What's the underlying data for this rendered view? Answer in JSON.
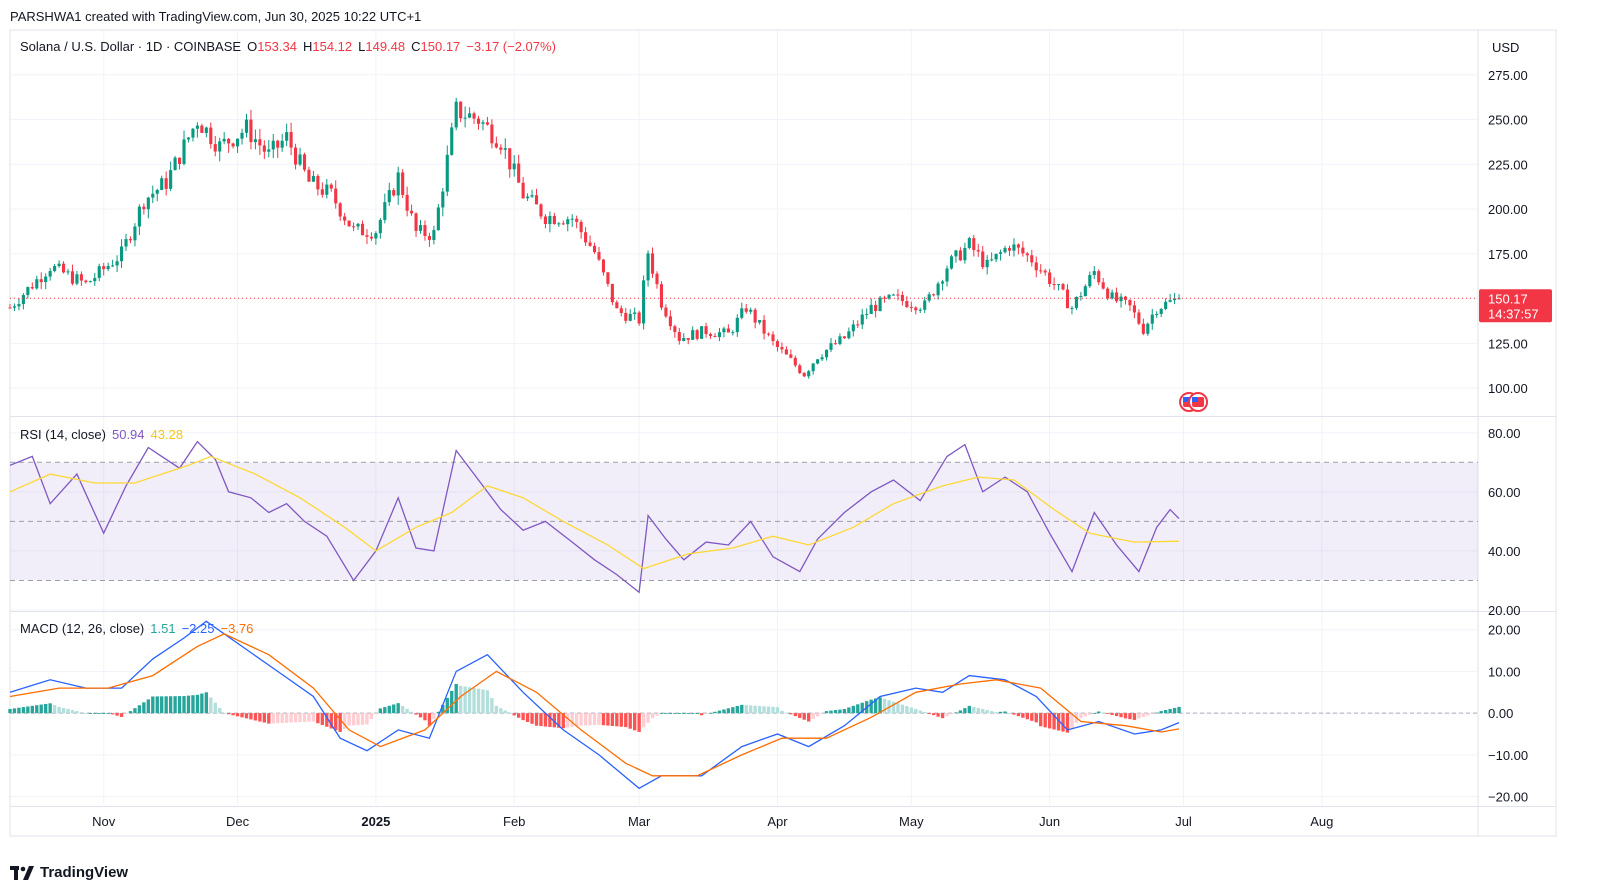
{
  "header": {
    "credit": "PARSHWA1 created with TradingView.com, Jun 30, 2025 10:22 UTC+1"
  },
  "price_legend": {
    "symbol": "Solana / U.S. Dollar · 1D · COINBASE",
    "o_label": "O",
    "o": "153.34",
    "h_label": "H",
    "h": "154.12",
    "l_label": "L",
    "l": "149.48",
    "c_label": "C",
    "c": "150.17",
    "change": "−3.17 (−2.07%)"
  },
  "currency": "USD",
  "last_price": {
    "value": "150.17",
    "countdown": "14:37:57"
  },
  "rsi_legend": {
    "label": "RSI (14, close)",
    "rsi": "50.94",
    "ma": "43.28"
  },
  "macd_legend": {
    "label": "MACD (12, 26, close)",
    "hist": "1.51",
    "macd": "−2.25",
    "signal": "−3.76"
  },
  "brand": "TradingView",
  "colors": {
    "up": "#089981",
    "down": "#f23645",
    "rsi": "#7e57c2",
    "rsi_ma": "#fdd835",
    "macd": "#2962ff",
    "signal": "#ff6d00",
    "hist_up": "#26a69a",
    "hist_down": "#ff5252"
  },
  "chart_data": [
    {
      "type": "candlestick",
      "ylim": [
        85,
        300
      ],
      "yticks": [
        100,
        125,
        150,
        175,
        200,
        225,
        250,
        275
      ],
      "ytick_labels": [
        "100.00",
        "125.00",
        "150.00",
        "175.00",
        "200.00",
        "225.00",
        "250.00",
        "275.00"
      ],
      "xticks": [
        "2024-11-01",
        "2024-12-01",
        "2025-01-01",
        "2025-02-01",
        "2025-03-01",
        "2025-04-01",
        "2025-05-01",
        "2025-06-01",
        "2025-07-01",
        "2025-08-01"
      ],
      "xtick_labels": [
        "Nov",
        "Dec",
        "2025",
        "Feb",
        "Mar",
        "Apr",
        "May",
        "Jun",
        "Jul",
        "Aug"
      ],
      "xlim": [
        "2024-10-11",
        "2025-09-05"
      ],
      "last_value": 150.17,
      "close_anchors": [
        [
          "2024-10-11",
          145
        ],
        [
          "2024-10-20",
          168
        ],
        [
          "2024-10-28",
          158
        ],
        [
          "2024-11-05",
          175
        ],
        [
          "2024-11-10",
          205
        ],
        [
          "2024-11-15",
          215
        ],
        [
          "2024-11-22",
          250
        ],
        [
          "2024-11-27",
          235
        ],
        [
          "2024-12-03",
          245
        ],
        [
          "2024-12-08",
          230
        ],
        [
          "2024-12-12",
          240
        ],
        [
          "2024-12-17",
          215
        ],
        [
          "2024-12-22",
          208
        ],
        [
          "2024-12-27",
          188
        ],
        [
          "2025-01-01",
          188
        ],
        [
          "2025-01-06",
          218
        ],
        [
          "2025-01-10",
          187
        ],
        [
          "2025-01-14",
          186
        ],
        [
          "2025-01-19",
          255
        ],
        [
          "2025-01-24",
          250
        ],
        [
          "2025-01-29",
          238
        ],
        [
          "2025-02-03",
          208
        ],
        [
          "2025-02-08",
          196
        ],
        [
          "2025-02-14",
          195
        ],
        [
          "2025-02-19",
          176
        ],
        [
          "2025-02-24",
          143
        ],
        [
          "2025-03-01",
          138
        ],
        [
          "2025-03-03",
          176
        ],
        [
          "2025-03-06",
          148
        ],
        [
          "2025-03-10",
          128
        ],
        [
          "2025-03-16",
          132
        ],
        [
          "2025-03-21",
          130
        ],
        [
          "2025-03-25",
          145
        ],
        [
          "2025-03-31",
          125
        ],
        [
          "2025-04-07",
          108
        ],
        [
          "2025-04-10",
          118
        ],
        [
          "2025-04-16",
          128
        ],
        [
          "2025-04-22",
          145
        ],
        [
          "2025-04-27",
          150
        ],
        [
          "2025-05-04",
          146
        ],
        [
          "2025-05-09",
          168
        ],
        [
          "2025-05-14",
          180
        ],
        [
          "2025-05-18",
          168
        ],
        [
          "2025-05-23",
          180
        ],
        [
          "2025-05-28",
          172
        ],
        [
          "2025-06-02",
          158
        ],
        [
          "2025-06-06",
          145
        ],
        [
          "2025-06-11",
          165
        ],
        [
          "2025-06-15",
          150
        ],
        [
          "2025-06-19",
          145
        ],
        [
          "2025-06-22",
          133
        ],
        [
          "2025-06-25",
          145
        ],
        [
          "2025-06-30",
          150.17
        ]
      ]
    },
    {
      "type": "line",
      "title": "RSI (14, close)",
      "ylim": [
        20,
        85
      ],
      "yticks": [
        20,
        40,
        60,
        80
      ],
      "ytick_labels": [
        "20.00",
        "40.00",
        "60.00",
        "80.00"
      ],
      "bands": [
        30,
        50,
        70
      ],
      "series": [
        {
          "name": "RSI",
          "points": [
            [
              "2024-10-11",
              69
            ],
            [
              "2024-10-16",
              72
            ],
            [
              "2024-10-20",
              56
            ],
            [
              "2024-10-26",
              66
            ],
            [
              "2024-11-01",
              46
            ],
            [
              "2024-11-06",
              62
            ],
            [
              "2024-11-11",
              75
            ],
            [
              "2024-11-14",
              72
            ],
            [
              "2024-11-18",
              68
            ],
            [
              "2024-11-22",
              77
            ],
            [
              "2024-11-26",
              71
            ],
            [
              "2024-11-29",
              60
            ],
            [
              "2024-12-04",
              58
            ],
            [
              "2024-12-08",
              53
            ],
            [
              "2024-12-12",
              56
            ],
            [
              "2024-12-16",
              50
            ],
            [
              "2024-12-21",
              45
            ],
            [
              "2024-12-27",
              30
            ],
            [
              "2025-01-01",
              40
            ],
            [
              "2025-01-06",
              58
            ],
            [
              "2025-01-10",
              41
            ],
            [
              "2025-01-14",
              40
            ],
            [
              "2025-01-19",
              74
            ],
            [
              "2025-01-24",
              64
            ],
            [
              "2025-01-29",
              54
            ],
            [
              "2025-02-03",
              47
            ],
            [
              "2025-02-08",
              50
            ],
            [
              "2025-02-14",
              43
            ],
            [
              "2025-02-19",
              37
            ],
            [
              "2025-02-24",
              32
            ],
            [
              "2025-03-01",
              26
            ],
            [
              "2025-03-03",
              52
            ],
            [
              "2025-03-07",
              44
            ],
            [
              "2025-03-11",
              37
            ],
            [
              "2025-03-16",
              43
            ],
            [
              "2025-03-21",
              42
            ],
            [
              "2025-03-26",
              50
            ],
            [
              "2025-03-31",
              38
            ],
            [
              "2025-04-06",
              33
            ],
            [
              "2025-04-10",
              44
            ],
            [
              "2025-04-16",
              53
            ],
            [
              "2025-04-22",
              60
            ],
            [
              "2025-04-27",
              64
            ],
            [
              "2025-05-03",
              57
            ],
            [
              "2025-05-09",
              72
            ],
            [
              "2025-05-13",
              76
            ],
            [
              "2025-05-17",
              60
            ],
            [
              "2025-05-22",
              65
            ],
            [
              "2025-05-27",
              60
            ],
            [
              "2025-06-01",
              46
            ],
            [
              "2025-06-06",
              33
            ],
            [
              "2025-06-11",
              53
            ],
            [
              "2025-06-16",
              42
            ],
            [
              "2025-06-21",
              33
            ],
            [
              "2025-06-25",
              48
            ],
            [
              "2025-06-28",
              54
            ],
            [
              "2025-06-30",
              50.94
            ]
          ]
        },
        {
          "name": "RSI-based MA",
          "points": [
            [
              "2024-10-11",
              60
            ],
            [
              "2024-10-20",
              66
            ],
            [
              "2024-10-30",
              63
            ],
            [
              "2024-11-08",
              63
            ],
            [
              "2024-11-20",
              69
            ],
            [
              "2024-11-25",
              72
            ],
            [
              "2024-12-05",
              66
            ],
            [
              "2024-12-15",
              58
            ],
            [
              "2024-12-25",
              48
            ],
            [
              "2025-01-01",
              40
            ],
            [
              "2025-01-10",
              48
            ],
            [
              "2025-01-18",
              53
            ],
            [
              "2025-01-26",
              62
            ],
            [
              "2025-02-03",
              58
            ],
            [
              "2025-02-12",
              50
            ],
            [
              "2025-02-22",
              42
            ],
            [
              "2025-03-02",
              34
            ],
            [
              "2025-03-12",
              39
            ],
            [
              "2025-03-22",
              41
            ],
            [
              "2025-03-31",
              45
            ],
            [
              "2025-04-08",
              42
            ],
            [
              "2025-04-18",
              48
            ],
            [
              "2025-04-27",
              56
            ],
            [
              "2025-05-08",
              62
            ],
            [
              "2025-05-16",
              65
            ],
            [
              "2025-05-24",
              64
            ],
            [
              "2025-06-02",
              54
            ],
            [
              "2025-06-10",
              46
            ],
            [
              "2025-06-20",
              43
            ],
            [
              "2025-06-30",
              43.28
            ]
          ]
        }
      ]
    },
    {
      "type": "bar+line",
      "title": "MACD (12, 26, close)",
      "ylim": [
        -22,
        24
      ],
      "yticks": [
        -20,
        -10,
        0,
        10,
        20
      ],
      "ytick_labels": [
        "−20.00",
        "−10.00",
        "0.00",
        "10.00",
        "20.00"
      ],
      "series": [
        {
          "name": "MACD",
          "points": [
            [
              "2024-10-11",
              5
            ],
            [
              "2024-10-20",
              8
            ],
            [
              "2024-10-28",
              6
            ],
            [
              "2024-11-05",
              6
            ],
            [
              "2024-11-12",
              13
            ],
            [
              "2024-11-19",
              18
            ],
            [
              "2024-11-24",
              22
            ],
            [
              "2024-12-02",
              16
            ],
            [
              "2024-12-10",
              10
            ],
            [
              "2024-12-18",
              4
            ],
            [
              "2024-12-24",
              -6
            ],
            [
              "2024-12-30",
              -9
            ],
            [
              "2025-01-06",
              -4
            ],
            [
              "2025-01-13",
              -6
            ],
            [
              "2025-01-19",
              10
            ],
            [
              "2025-01-26",
              14
            ],
            [
              "2025-02-03",
              5
            ],
            [
              "2025-02-12",
              -4
            ],
            [
              "2025-02-20",
              -10
            ],
            [
              "2025-03-01",
              -18
            ],
            [
              "2025-03-06",
              -15
            ],
            [
              "2025-03-15",
              -15
            ],
            [
              "2025-03-24",
              -8
            ],
            [
              "2025-04-01",
              -5
            ],
            [
              "2025-04-08",
              -8
            ],
            [
              "2025-04-16",
              -3
            ],
            [
              "2025-04-24",
              4
            ],
            [
              "2025-05-02",
              6
            ],
            [
              "2025-05-08",
              5
            ],
            [
              "2025-05-14",
              9
            ],
            [
              "2025-05-22",
              8
            ],
            [
              "2025-05-29",
              4
            ],
            [
              "2025-06-05",
              -4
            ],
            [
              "2025-06-12",
              -2
            ],
            [
              "2025-06-20",
              -5
            ],
            [
              "2025-06-26",
              -4
            ],
            [
              "2025-06-30",
              -2.25
            ]
          ]
        },
        {
          "name": "Signal",
          "points": [
            [
              "2024-10-11",
              4
            ],
            [
              "2024-10-22",
              6
            ],
            [
              "2024-11-02",
              6
            ],
            [
              "2024-11-12",
              9
            ],
            [
              "2024-11-22",
              16
            ],
            [
              "2024-11-28",
              19
            ],
            [
              "2024-12-08",
              14
            ],
            [
              "2024-12-18",
              6
            ],
            [
              "2024-12-26",
              -4
            ],
            [
              "2025-01-02",
              -8
            ],
            [
              "2025-01-12",
              -4
            ],
            [
              "2025-01-20",
              4
            ],
            [
              "2025-01-28",
              10
            ],
            [
              "2025-02-06",
              5
            ],
            [
              "2025-02-16",
              -4
            ],
            [
              "2025-02-26",
              -12
            ],
            [
              "2025-03-04",
              -15
            ],
            [
              "2025-03-14",
              -15
            ],
            [
              "2025-03-24",
              -10
            ],
            [
              "2025-04-02",
              -6
            ],
            [
              "2025-04-12",
              -6
            ],
            [
              "2025-04-22",
              -1
            ],
            [
              "2025-05-02",
              5
            ],
            [
              "2025-05-12",
              7
            ],
            [
              "2025-05-20",
              8
            ],
            [
              "2025-05-30",
              6
            ],
            [
              "2025-06-08",
              -2
            ],
            [
              "2025-06-18",
              -3
            ],
            [
              "2025-06-26",
              -4.5
            ],
            [
              "2025-06-30",
              -3.76
            ]
          ]
        },
        {
          "name": "Histogram",
          "last_value": 1.51
        }
      ]
    }
  ]
}
